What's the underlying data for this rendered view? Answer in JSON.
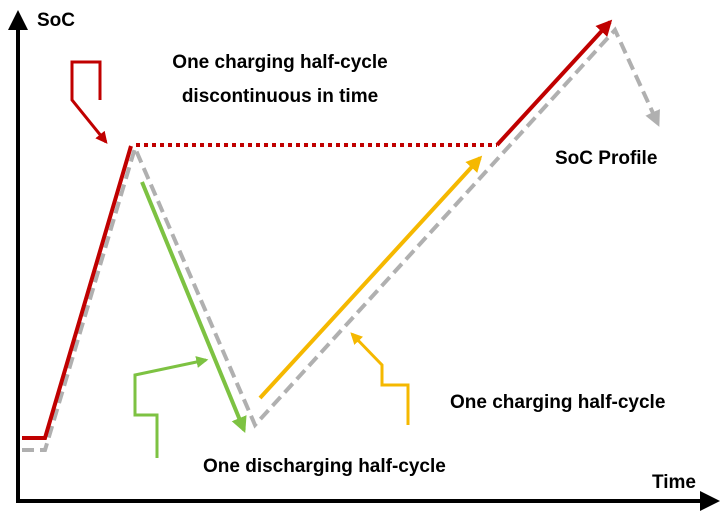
{
  "axes": {
    "y_label": "SoC",
    "x_label": "Time"
  },
  "annotations": {
    "discontinuous": [
      "One charging half-cycle",
      "discontinuous in time"
    ],
    "profile": "SoC Profile",
    "charging": "One charging half-cycle",
    "discharging": "One discharging half-cycle"
  }
}
